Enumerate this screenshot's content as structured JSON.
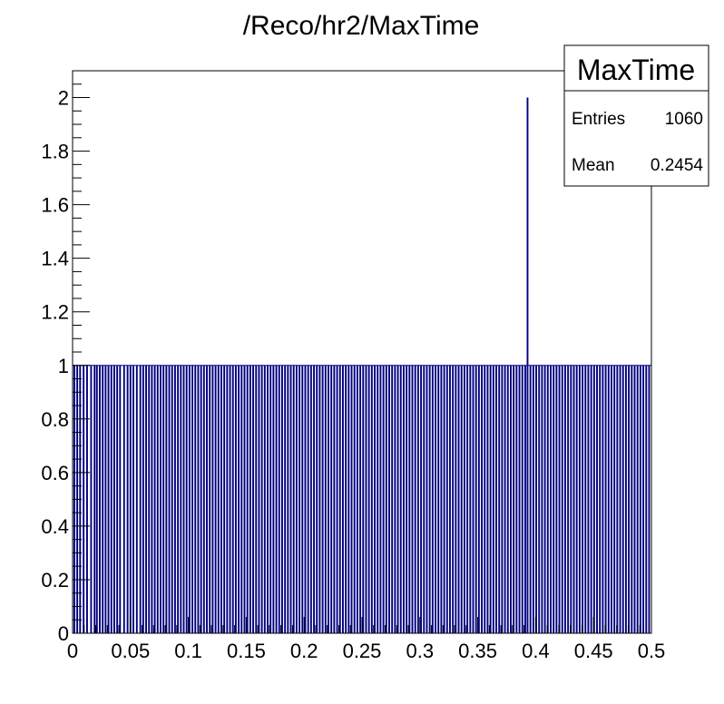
{
  "chart_data": {
    "type": "bar",
    "title": "/Reco/hr2/MaxTime",
    "xlabel": "",
    "ylabel": "",
    "xlim": [
      0,
      0.5
    ],
    "ylim": [
      0,
      2.1
    ],
    "x_ticks": [
      "0",
      "0.05",
      "0.1",
      "0.15",
      "0.2",
      "0.25",
      "0.3",
      "0.35",
      "0.4",
      "0.45",
      "0.5"
    ],
    "y_ticks": [
      "0",
      "0.2",
      "0.4",
      "0.6",
      "0.8",
      "1",
      "1.2",
      "1.4",
      "1.6",
      "1.8",
      "2"
    ],
    "bar_color": "#000080",
    "grid": false,
    "legend_position": "top-right",
    "stats": {
      "name": "MaxTime",
      "entries_label": "Entries",
      "entries_value": "1060",
      "mean_label": "Mean",
      "mean_value": "0.2454"
    },
    "series": [
      {
        "values_x": [
          0.0015,
          0.004,
          0.0065,
          0.0095,
          0.0125,
          0.016,
          0.019,
          0.021,
          0.0235,
          0.026,
          0.0285,
          0.031,
          0.0335,
          0.036,
          0.0385,
          0.041,
          0.0445,
          0.0475,
          0.05,
          0.0525,
          0.0555,
          0.0585,
          0.061,
          0.0635,
          0.066,
          0.0685,
          0.071,
          0.0735,
          0.076,
          0.0785,
          0.081,
          0.0835,
          0.086,
          0.0885,
          0.091,
          0.0935,
          0.096,
          0.0985,
          0.101,
          0.1035,
          0.106,
          0.1085,
          0.111,
          0.1135,
          0.116,
          0.1185,
          0.121,
          0.1235,
          0.126,
          0.1285,
          0.131,
          0.1335,
          0.136,
          0.1385,
          0.141,
          0.1435,
          0.146,
          0.1485,
          0.151,
          0.1535,
          0.156,
          0.1585,
          0.161,
          0.1635,
          0.166,
          0.1685,
          0.171,
          0.1735,
          0.176,
          0.1785,
          0.181,
          0.1835,
          0.186,
          0.1885,
          0.191,
          0.1935,
          0.196,
          0.1985,
          0.201,
          0.2035,
          0.206,
          0.2085,
          0.211,
          0.2135,
          0.216,
          0.2185,
          0.221,
          0.2235,
          0.226,
          0.2285,
          0.231,
          0.2335,
          0.236,
          0.2385,
          0.241,
          0.2435,
          0.246,
          0.2485,
          0.251,
          0.2535,
          0.256,
          0.2585,
          0.261,
          0.2635,
          0.266,
          0.2685,
          0.271,
          0.2735,
          0.276,
          0.2785,
          0.281,
          0.2835,
          0.286,
          0.2885,
          0.291,
          0.2935,
          0.296,
          0.2985,
          0.301,
          0.3035,
          0.306,
          0.3085,
          0.311,
          0.3135,
          0.316,
          0.3185,
          0.321,
          0.3235,
          0.326,
          0.3285,
          0.331,
          0.3335,
          0.336,
          0.3385,
          0.341,
          0.3435,
          0.346,
          0.3485,
          0.351,
          0.3535,
          0.356,
          0.3585,
          0.361,
          0.3635,
          0.366,
          0.3685,
          0.371,
          0.3735,
          0.376,
          0.3785,
          0.381,
          0.3835,
          0.386,
          0.3885,
          0.391,
          0.393,
          0.3955,
          0.398,
          0.4005,
          0.403,
          0.4055,
          0.408,
          0.4105,
          0.413,
          0.4155,
          0.418,
          0.4205,
          0.423,
          0.4255,
          0.428,
          0.4305,
          0.433,
          0.4355,
          0.438,
          0.4405,
          0.443,
          0.4455,
          0.448,
          0.4505,
          0.453,
          0.4555,
          0.458,
          0.4605,
          0.463,
          0.4655,
          0.468,
          0.4705,
          0.473,
          0.4755,
          0.478,
          0.4805,
          0.483,
          0.4855,
          0.488,
          0.4905,
          0.493,
          0.4955,
          0.498
        ],
        "values_y": [
          1,
          1,
          1,
          1,
          1,
          1,
          1,
          1,
          1,
          1,
          1,
          1,
          1,
          1,
          1,
          1,
          1,
          1,
          1,
          1,
          1,
          1,
          1,
          1,
          1,
          1,
          1,
          1,
          1,
          1,
          1,
          1,
          1,
          1,
          1,
          1,
          1,
          1,
          1,
          1,
          1,
          1,
          1,
          1,
          1,
          1,
          1,
          1,
          1,
          1,
          1,
          1,
          1,
          1,
          1,
          1,
          1,
          1,
          1,
          1,
          1,
          1,
          1,
          1,
          1,
          1,
          1,
          1,
          1,
          1,
          1,
          1,
          1,
          1,
          1,
          1,
          1,
          1,
          1,
          1,
          1,
          1,
          1,
          1,
          1,
          1,
          1,
          1,
          1,
          1,
          1,
          1,
          1,
          1,
          1,
          1,
          1,
          1,
          1,
          1,
          1,
          1,
          1,
          1,
          1,
          1,
          1,
          1,
          1,
          1,
          1,
          1,
          1,
          1,
          1,
          1,
          1,
          1,
          1,
          1,
          1,
          1,
          1,
          1,
          1,
          1,
          1,
          1,
          1,
          1,
          1,
          1,
          1,
          1,
          1,
          1,
          1,
          1,
          1,
          1,
          1,
          1,
          1,
          1,
          1,
          1,
          1,
          1,
          1,
          1,
          1,
          1,
          1,
          1,
          1,
          2,
          1,
          1,
          1,
          1,
          1,
          1,
          1,
          1,
          1,
          1,
          1,
          1,
          1,
          1,
          1,
          1,
          1,
          1,
          1,
          1,
          1,
          1,
          1,
          1,
          1,
          1,
          1,
          1,
          1,
          1,
          1,
          1,
          1,
          1,
          1,
          1,
          1,
          1,
          1,
          1,
          1,
          1
        ]
      }
    ]
  }
}
